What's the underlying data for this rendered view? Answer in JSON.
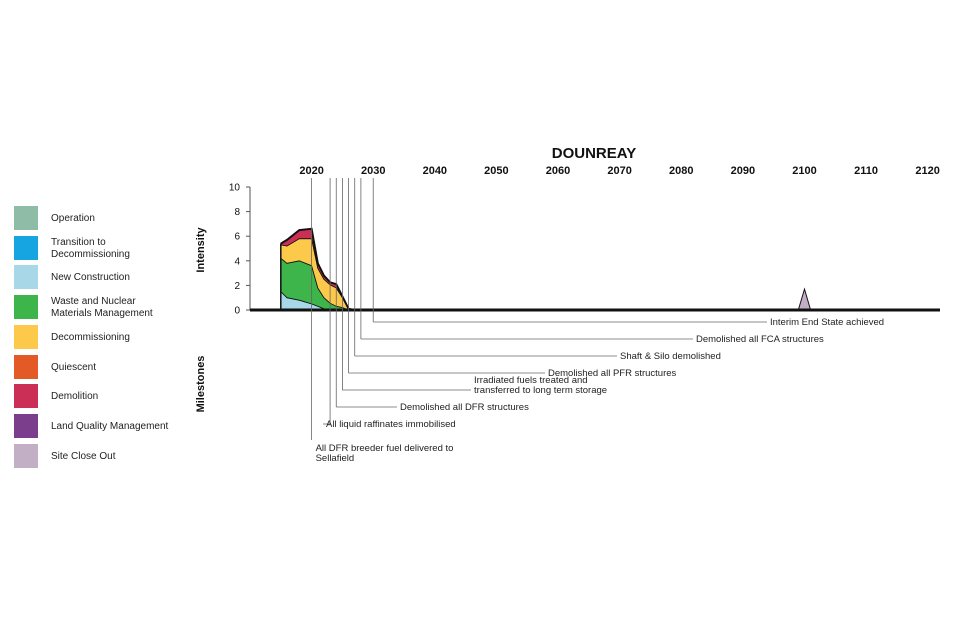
{
  "chart_data": {
    "type": "area",
    "title": "DOUNREAY",
    "ylabel": "Intensity",
    "milestones_label": "Milestones",
    "x_ticks": [
      "2020",
      "2030",
      "2040",
      "2050",
      "2060",
      "2070",
      "2080",
      "2090",
      "2100",
      "2110",
      "2120"
    ],
    "y_ticks": [
      "0",
      "2",
      "4",
      "6",
      "8",
      "10"
    ],
    "xlim": [
      2010,
      2122
    ],
    "ylim": [
      0,
      10
    ],
    "x": [
      2015,
      2016,
      2018,
      2020,
      2021,
      2022,
      2023,
      2024,
      2025,
      2026,
      2027
    ],
    "series": [
      {
        "name": "New Construction",
        "color": "#a8d8e8",
        "values": [
          1.5,
          1.0,
          0.8,
          0.5,
          0.3,
          0.1,
          0.05,
          0,
          0,
          0,
          0
        ]
      },
      {
        "name": "Waste and Nuclear Materials Management",
        "color": "#3db54a",
        "values": [
          2.7,
          2.8,
          3.2,
          3.1,
          1.5,
          0.9,
          0.5,
          0.3,
          0.2,
          0,
          0
        ]
      },
      {
        "name": "Decommissioning",
        "color": "#fcc94a",
        "values": [
          1.1,
          1.4,
          1.8,
          2.2,
          1.6,
          1.5,
          1.5,
          1.5,
          0.8,
          0.1,
          0
        ]
      },
      {
        "name": "Demolition",
        "color": "#cc2f55",
        "values": [
          0.1,
          0.5,
          0.7,
          0.8,
          0.4,
          0.3,
          0.2,
          0.3,
          0.1,
          0,
          0
        ]
      }
    ],
    "site_close_out": {
      "name": "Site Close Out",
      "color": "#c2afc6",
      "x": [
        2099,
        2100,
        2101
      ],
      "values": [
        0,
        1.7,
        0
      ]
    },
    "legend": [
      {
        "label": "Operation",
        "color": "#8fbca6"
      },
      {
        "label": "Transition to\nDecommissioning",
        "color": "#16a5e0"
      },
      {
        "label": "New Construction",
        "color": "#a8d8e8"
      },
      {
        "label": "Waste and Nuclear\nMaterials Management",
        "color": "#3db54a"
      },
      {
        "label": "Decommissioning",
        "color": "#fcc94a"
      },
      {
        "label": "Quiescent",
        "color": "#e35a27"
      },
      {
        "label": "Demolition",
        "color": "#cc2f55"
      },
      {
        "label": "Land Quality Management",
        "color": "#7a3e8c"
      },
      {
        "label": "Site Close Out",
        "color": "#c2afc6"
      }
    ],
    "milestones": [
      {
        "year": 2020,
        "text": [
          "All DFR breeder fuel delivered to",
          "Sellafield"
        ]
      },
      {
        "year": 2023,
        "text": [
          "All liquid raffinates immobilised"
        ]
      },
      {
        "year": 2024,
        "text": [
          "Demolished all DFR structures"
        ]
      },
      {
        "year": 2025,
        "text": [
          "Irradiated fuels treated and",
          "transferred to long term storage"
        ]
      },
      {
        "year": 2026,
        "text": [
          "Demolished all PFR structures"
        ]
      },
      {
        "year": 2027,
        "text": [
          "Shaft & Silo demolished"
        ]
      },
      {
        "year": 2028,
        "text": [
          "Demolished all FCA structures"
        ]
      },
      {
        "year": 2030,
        "text": [
          "Interim End State achieved"
        ]
      }
    ]
  }
}
